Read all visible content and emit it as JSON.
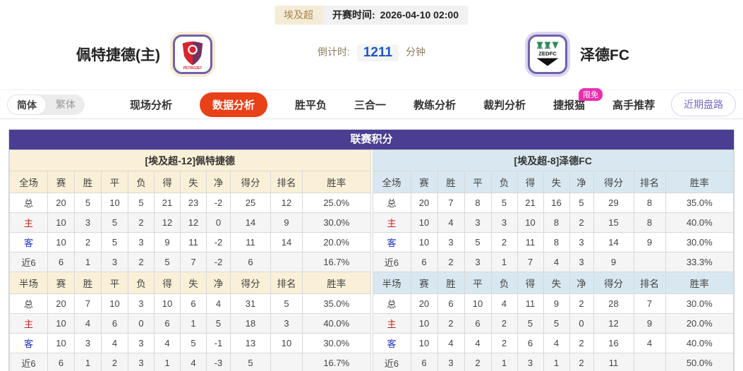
{
  "header": {
    "league_badge": "埃及超",
    "kickoff_label": "开赛时间:",
    "kickoff_time": "2026-04-10 02:00",
    "home_team": "佩特捷德(主)",
    "away_team": "泽德FC",
    "home_logo_text": "PETROJET",
    "away_logo_text": "ZEDFC",
    "countdown_label": "倒计时:",
    "countdown_value": "1211",
    "countdown_unit": "分钟"
  },
  "nav": {
    "lang_simplified": "简体",
    "lang_traditional": "繁体",
    "tabs": [
      {
        "label": "现场分析",
        "active": false
      },
      {
        "label": "数据分析",
        "active": true
      },
      {
        "label": "胜平负",
        "active": false
      },
      {
        "label": "三合一",
        "active": false
      },
      {
        "label": "教练分析",
        "active": false
      },
      {
        "label": "裁判分析",
        "active": false
      },
      {
        "label": "捷报猫",
        "active": false,
        "badge": "限免"
      },
      {
        "label": "高手推荐",
        "active": false
      }
    ],
    "recent_button": "近期盘路"
  },
  "standings": {
    "title": "联赛积分",
    "left": {
      "team_header": "[埃及超-12]佩特捷德",
      "full": {
        "first_col": "全场",
        "headers": [
          "赛",
          "胜",
          "平",
          "负",
          "得",
          "失",
          "净",
          "得分",
          "排名",
          "胜率"
        ],
        "rows": [
          {
            "label": "总",
            "type": "total",
            "cells": [
              "20",
              "5",
              "10",
              "5",
              "21",
              "23",
              "-2",
              "25",
              "12",
              "25.0%"
            ]
          },
          {
            "label": "主",
            "type": "home",
            "cells": [
              "10",
              "3",
              "5",
              "2",
              "12",
              "12",
              "0",
              "14",
              "9",
              "30.0%"
            ]
          },
          {
            "label": "客",
            "type": "away",
            "cells": [
              "10",
              "2",
              "5",
              "3",
              "9",
              "11",
              "-2",
              "11",
              "14",
              "20.0%"
            ]
          },
          {
            "label": "近6",
            "type": "recent",
            "cells": [
              "6",
              "1",
              "3",
              "2",
              "5",
              "7",
              "-2",
              "6",
              "",
              "16.7%"
            ]
          }
        ]
      },
      "half": {
        "first_col": "半场",
        "headers": [
          "赛",
          "胜",
          "平",
          "负",
          "得",
          "失",
          "净",
          "得分",
          "排名",
          "胜率"
        ],
        "rows": [
          {
            "label": "总",
            "type": "total",
            "cells": [
              "20",
              "7",
              "10",
              "3",
              "10",
              "6",
              "4",
              "31",
              "5",
              "35.0%"
            ]
          },
          {
            "label": "主",
            "type": "home",
            "cells": [
              "10",
              "4",
              "6",
              "0",
              "6",
              "1",
              "5",
              "18",
              "3",
              "40.0%"
            ]
          },
          {
            "label": "客",
            "type": "away",
            "cells": [
              "10",
              "3",
              "4",
              "3",
              "4",
              "5",
              "-1",
              "13",
              "10",
              "30.0%"
            ]
          },
          {
            "label": "近6",
            "type": "recent",
            "cells": [
              "6",
              "1",
              "2",
              "3",
              "1",
              "4",
              "-3",
              "5",
              "",
              "16.7%"
            ]
          }
        ]
      }
    },
    "right": {
      "team_header": "[埃及超-8]泽德FC",
      "full": {
        "first_col": "全场",
        "headers": [
          "赛",
          "胜",
          "平",
          "负",
          "得",
          "失",
          "净",
          "得分",
          "排名",
          "胜率"
        ],
        "rows": [
          {
            "label": "总",
            "type": "total",
            "cells": [
              "20",
              "7",
              "8",
              "5",
              "21",
              "16",
              "5",
              "29",
              "8",
              "35.0%"
            ]
          },
          {
            "label": "主",
            "type": "home",
            "cells": [
              "10",
              "4",
              "3",
              "3",
              "10",
              "8",
              "2",
              "15",
              "8",
              "40.0%"
            ]
          },
          {
            "label": "客",
            "type": "away",
            "cells": [
              "10",
              "3",
              "5",
              "2",
              "11",
              "8",
              "3",
              "14",
              "9",
              "30.0%"
            ]
          },
          {
            "label": "近6",
            "type": "recent",
            "cells": [
              "6",
              "2",
              "3",
              "1",
              "7",
              "4",
              "3",
              "9",
              "",
              "33.3%"
            ]
          }
        ]
      },
      "half": {
        "first_col": "半场",
        "headers": [
          "赛",
          "胜",
          "平",
          "负",
          "得",
          "失",
          "净",
          "得分",
          "排名",
          "胜率"
        ],
        "rows": [
          {
            "label": "总",
            "type": "total",
            "cells": [
              "20",
              "6",
              "10",
              "4",
              "11",
              "9",
              "2",
              "28",
              "7",
              "30.0%"
            ]
          },
          {
            "label": "主",
            "type": "home",
            "cells": [
              "10",
              "2",
              "6",
              "2",
              "5",
              "5",
              "0",
              "12",
              "9",
              "20.0%"
            ]
          },
          {
            "label": "客",
            "type": "away",
            "cells": [
              "10",
              "4",
              "4",
              "2",
              "6",
              "4",
              "2",
              "16",
              "4",
              "40.0%"
            ]
          },
          {
            "label": "近6",
            "type": "recent",
            "cells": [
              "6",
              "3",
              "2",
              "1",
              "3",
              "1",
              "2",
              "11",
              "",
              "50.0%"
            ]
          }
        ]
      }
    }
  },
  "colors": {
    "accent_purple": "#4b3e92",
    "active_tab": "#e84118",
    "badge_pink": "#ea2fae",
    "countdown_blue": "#1a56cc",
    "cream_panel": "#faf0d8",
    "blue_panel": "#d9e8f0",
    "home_row_red": "#c52222",
    "away_row_blue": "#2233c5"
  }
}
